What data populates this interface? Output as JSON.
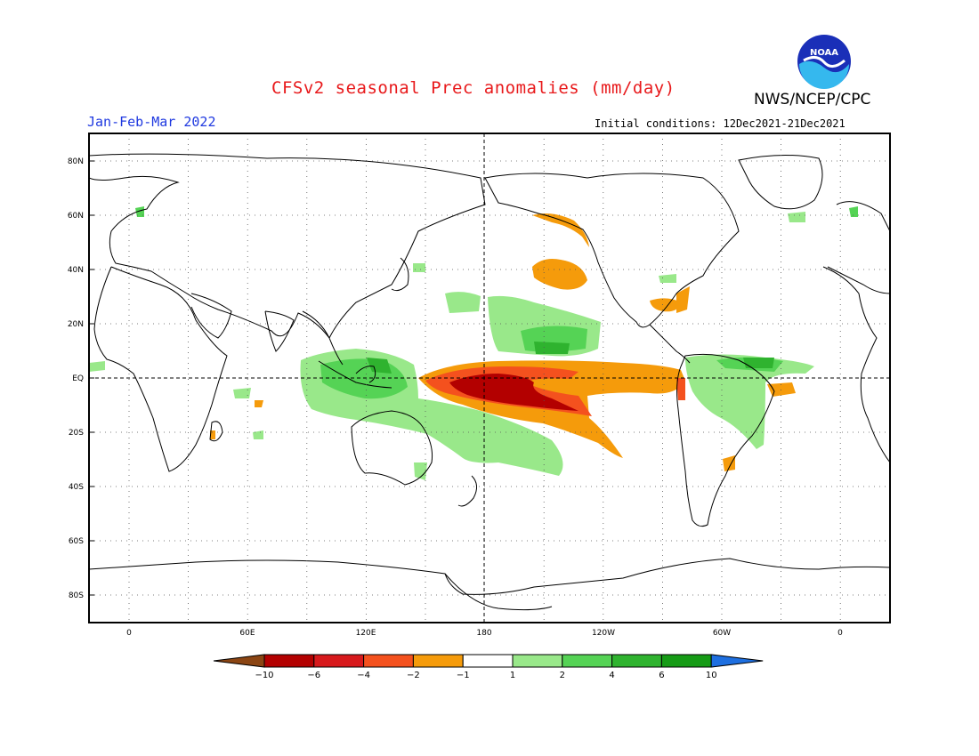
{
  "header": {
    "title": "CFSv2 seasonal Prec anomalies (mm/day)",
    "org": "NWS/NCEP/CPC",
    "season": "Jan-Feb-Mar 2022",
    "initial_conditions": "Initial conditions: 12Dec2021-21Dec2021",
    "logo_text": "NOAA"
  },
  "map": {
    "lat_labels": [
      "80N",
      "60N",
      "40N",
      "20N",
      "EQ",
      "20S",
      "40S",
      "60S",
      "80S"
    ],
    "lon_labels": [
      "0",
      "60E",
      "120E",
      "180",
      "120W",
      "60W",
      "0"
    ],
    "grid": "dotted",
    "reference_lines": [
      "Equator",
      "180 meridian"
    ]
  },
  "colorbar": {
    "tick_labels": [
      "-10",
      "-6",
      "-4",
      "-2",
      "-1",
      "1",
      "2",
      "4",
      "6",
      "10"
    ],
    "colors": [
      "#8b4513",
      "#b30000",
      "#d7191c",
      "#f4511e",
      "#f59b0b",
      "#ffffff",
      "#99e88a",
      "#55d355",
      "#2fb32f",
      "#169b16",
      "#1e6fe0"
    ]
  },
  "legend": {
    "colors_meaning": {
      "dry": "#f59b0b",
      "very_dry": "#d7191c",
      "extreme_dry": "#b30000",
      "wet_light": "#99e88a",
      "wet": "#55d355",
      "very_wet": "#2fb32f"
    }
  }
}
